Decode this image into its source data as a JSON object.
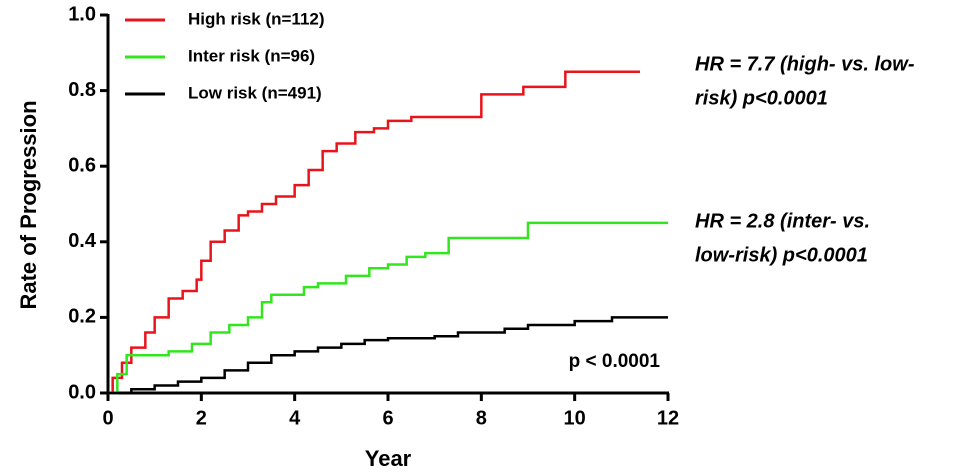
{
  "chart_data": {
    "type": "step",
    "xlabel": "Year",
    "ylabel": "Rate of Progression",
    "xlim": [
      0,
      12
    ],
    "xticks": [
      0,
      2,
      4,
      6,
      8,
      10,
      12
    ],
    "ylim": [
      0,
      1
    ],
    "yticks": [
      {
        "value": 0,
        "label": "0.0"
      },
      0.2,
      0.4,
      0.6,
      0.8,
      {
        "value": 1,
        "label": "1.0"
      }
    ],
    "series": [
      {
        "name": "High risk (n=112)",
        "color": "#e8141c",
        "x": [
          0,
          0.1,
          0.3,
          0.5,
          0.8,
          1.0,
          1.3,
          1.6,
          1.9,
          2.0,
          2.2,
          2.5,
          2.8,
          3.0,
          3.3,
          3.6,
          4.0,
          4.3,
          4.6,
          4.9,
          5.3,
          5.7,
          6.0,
          6.5,
          7.0,
          8.0,
          8.9,
          9.8,
          11.4
        ],
        "values": [
          0,
          0.04,
          0.08,
          0.12,
          0.16,
          0.2,
          0.25,
          0.27,
          0.3,
          0.35,
          0.4,
          0.43,
          0.47,
          0.48,
          0.5,
          0.52,
          0.55,
          0.59,
          0.64,
          0.66,
          0.69,
          0.7,
          0.72,
          0.73,
          0.73,
          0.79,
          0.81,
          0.85,
          0.85
        ]
      },
      {
        "name": "Inter risk (n=96)",
        "color": "#33e51f",
        "x": [
          0,
          0.2,
          0.4,
          1.3,
          1.8,
          2.2,
          2.6,
          3.0,
          3.3,
          3.5,
          4.2,
          4.5,
          5.1,
          5.6,
          6.0,
          6.4,
          6.8,
          7.3,
          9.0,
          12
        ],
        "values": [
          0,
          0.05,
          0.1,
          0.11,
          0.13,
          0.16,
          0.18,
          0.2,
          0.24,
          0.26,
          0.28,
          0.29,
          0.31,
          0.33,
          0.34,
          0.36,
          0.37,
          0.41,
          0.45,
          0.45
        ]
      },
      {
        "name": "Low risk (n=491)",
        "color": "#000000",
        "x": [
          0,
          0.5,
          1,
          1.5,
          2,
          2.5,
          3,
          3.5,
          4,
          4.5,
          5,
          5.5,
          6,
          7,
          7.5,
          8.5,
          9,
          10,
          10.8,
          12
        ],
        "values": [
          0,
          0.01,
          0.02,
          0.03,
          0.04,
          0.06,
          0.08,
          0.1,
          0.11,
          0.12,
          0.13,
          0.14,
          0.145,
          0.15,
          0.16,
          0.17,
          0.18,
          0.19,
          0.2,
          0.2
        ]
      }
    ],
    "annotations": [
      {
        "lines": [
          "HR = 7.7 (high- vs. low-",
          "risk) p<0.0001"
        ],
        "color": "#e8141c"
      },
      {
        "lines": [
          "HR = 2.8 (inter- vs.",
          "low-risk) p<0.0001"
        ],
        "color": "#21a844"
      },
      {
        "lines": [
          "p < 0.0001"
        ],
        "color": "#000000"
      }
    ]
  }
}
